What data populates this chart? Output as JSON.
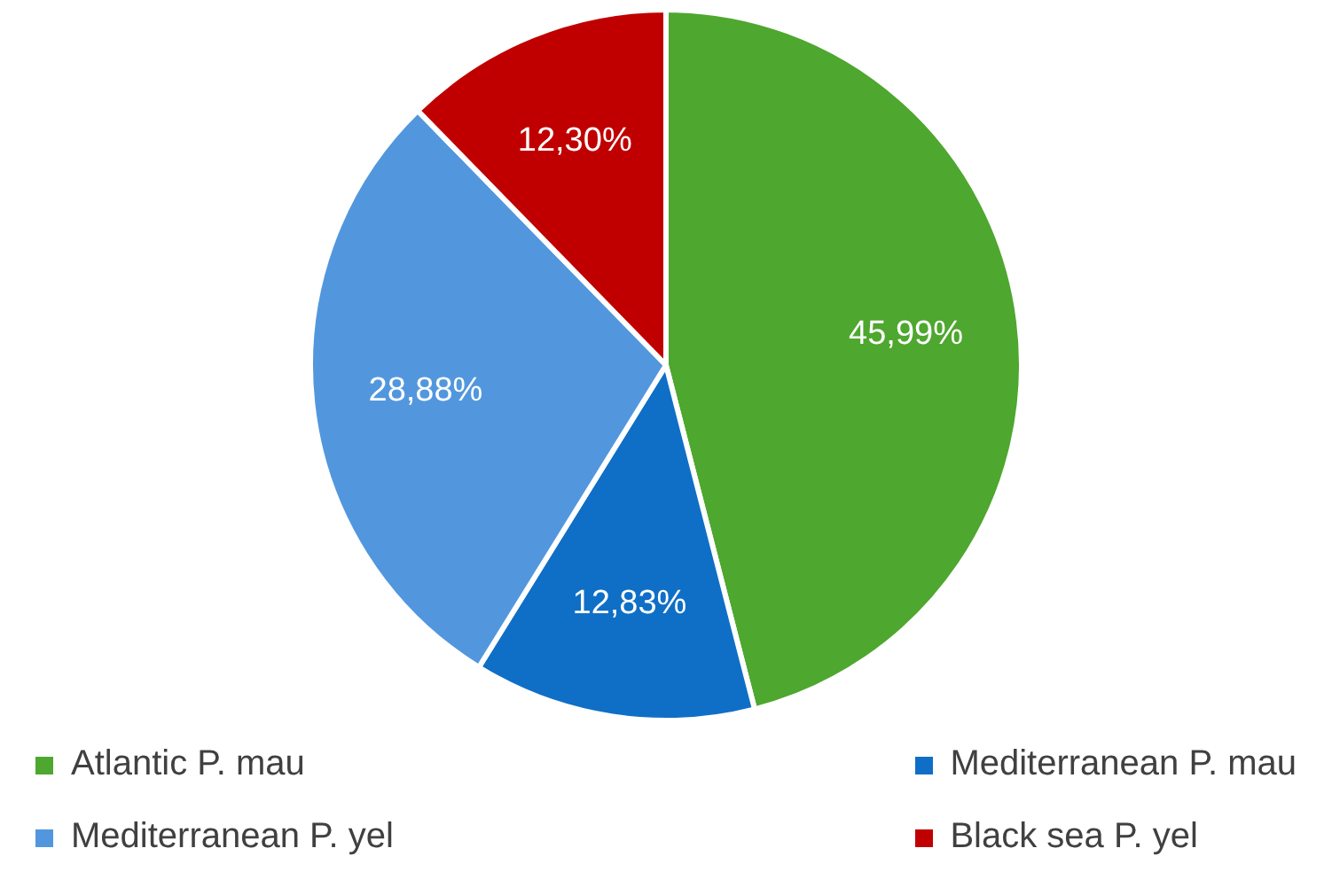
{
  "chart_data": {
    "type": "pie",
    "categories": [
      "Atlantic P. mau",
      "Mediterranean P. mau",
      "Mediterranean P. yel",
      "Black sea P. yel"
    ],
    "values": [
      45.99,
      12.83,
      28.88,
      12.3
    ],
    "colors": [
      "#4ea72e",
      "#0f6fc6",
      "#5297dd",
      "#c00000"
    ],
    "value_labels": [
      "45,99%",
      "12,83%",
      "28,88%",
      "12,30%"
    ],
    "legend": "bottom"
  }
}
